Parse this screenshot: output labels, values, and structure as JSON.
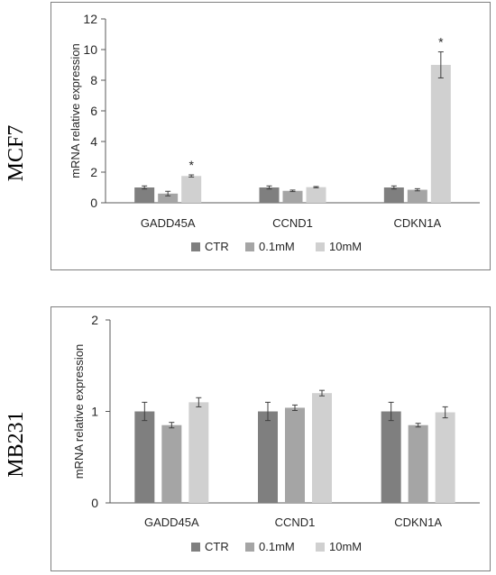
{
  "row_labels": [
    "MCF7",
    "MB231"
  ],
  "colors": {
    "CTR": "#7f7f7f",
    "0.1mM": "#a5a5a5",
    "10mM": "#d0d0d0",
    "axis": "#595959",
    "frame": "#7f7f7f"
  },
  "chart_data": [
    {
      "type": "bar",
      "ylabel": "mRNA relative expression",
      "ylim": [
        0,
        12
      ],
      "yticks": [
        "0",
        "2",
        "4",
        "6",
        "8",
        "10",
        "12"
      ],
      "categories": [
        "GADD45A",
        "CCND1",
        "CDKN1A"
      ],
      "legend_position": "bottom",
      "series": [
        {
          "name": "CTR",
          "values": [
            1.0,
            1.0,
            1.0
          ],
          "errors": [
            0.1,
            0.1,
            0.1
          ]
        },
        {
          "name": "0.1mM",
          "values": [
            0.6,
            0.78,
            0.85
          ],
          "errors": [
            0.15,
            0.05,
            0.07
          ]
        },
        {
          "name": "10mM",
          "values": [
            1.75,
            1.02,
            9.0
          ],
          "errors": [
            0.07,
            0.04,
            0.85
          ]
        }
      ],
      "annotations": [
        {
          "text": "*",
          "category": "GADD45A",
          "series": "10mM"
        },
        {
          "text": "*",
          "category": "CDKN1A",
          "series": "10mM"
        }
      ]
    },
    {
      "type": "bar",
      "ylabel": "mRNA relative expression",
      "ylim": [
        0,
        2
      ],
      "yticks": [
        "0",
        "1",
        "2"
      ],
      "categories": [
        "GADD45A",
        "CCND1",
        "CDKN1A"
      ],
      "legend_position": "bottom",
      "series": [
        {
          "name": "CTR",
          "values": [
            1.0,
            1.0,
            1.0
          ],
          "errors": [
            0.1,
            0.1,
            0.1
          ]
        },
        {
          "name": "0.1mM",
          "values": [
            0.85,
            1.04,
            0.85
          ],
          "errors": [
            0.03,
            0.03,
            0.02
          ]
        },
        {
          "name": "10mM",
          "values": [
            1.1,
            1.2,
            0.99
          ],
          "errors": [
            0.05,
            0.03,
            0.06
          ]
        }
      ],
      "annotations": []
    }
  ]
}
